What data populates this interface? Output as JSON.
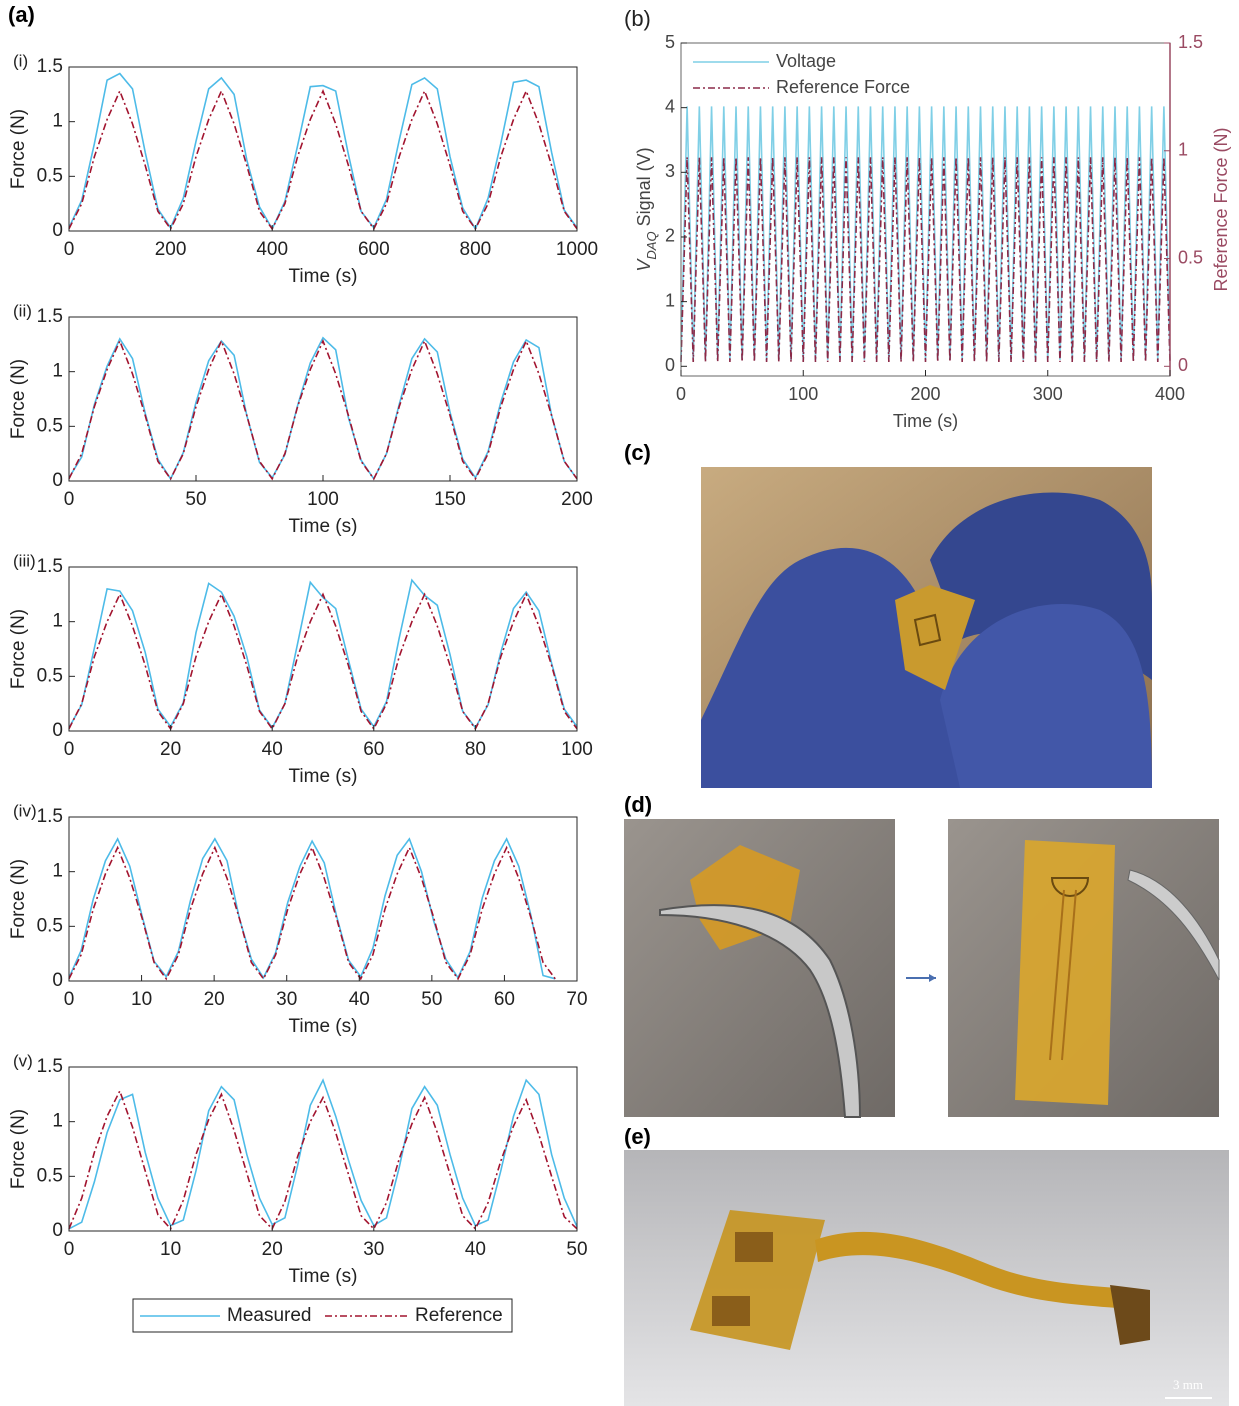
{
  "panels": {
    "a": "(a)",
    "c": "(c)",
    "d": "(d)",
    "e": "(e)",
    "scale_bar": "3 mm"
  },
  "chart_data": [
    {
      "type": "line",
      "panel_label": "(i)",
      "xlabel": "Time (s)",
      "ylabel": "Force (N)",
      "x": [
        0,
        25,
        50,
        75,
        100,
        125,
        150,
        175,
        200,
        225,
        250,
        275,
        300,
        325,
        350,
        375,
        400,
        425,
        450,
        475,
        500,
        525,
        550,
        575,
        600,
        625,
        650,
        675,
        700,
        725,
        750,
        775,
        800,
        825,
        850,
        875,
        900,
        925,
        950,
        975,
        1000
      ],
      "xlim": [
        0,
        1000
      ],
      "xticks": [
        0,
        200,
        400,
        600,
        800,
        1000
      ],
      "ylim": [
        0,
        1.5
      ],
      "yticks": [
        0,
        0.5,
        1,
        1.5
      ],
      "series": [
        {
          "name": "Measured",
          "color": "#4dbbe8",
          "line_style": "solid",
          "values": [
            0.03,
            0.28,
            0.8,
            1.38,
            1.44,
            1.3,
            0.72,
            0.2,
            0.03,
            0.3,
            0.82,
            1.3,
            1.4,
            1.25,
            0.65,
            0.22,
            0.02,
            0.27,
            0.78,
            1.32,
            1.33,
            1.28,
            0.7,
            0.18,
            0.03,
            0.29,
            0.83,
            1.34,
            1.4,
            1.3,
            0.68,
            0.21,
            0.02,
            0.3,
            0.8,
            1.36,
            1.38,
            1.32,
            0.72,
            0.19,
            0.03
          ]
        },
        {
          "name": "Reference",
          "color": "#a2142f",
          "line_style": "dash-dot",
          "values": [
            0.02,
            0.25,
            0.68,
            1.02,
            1.28,
            0.98,
            0.6,
            0.18,
            0.02,
            0.25,
            0.68,
            1.02,
            1.28,
            0.98,
            0.6,
            0.18,
            0.02,
            0.25,
            0.68,
            1.02,
            1.28,
            0.98,
            0.6,
            0.18,
            0.02,
            0.25,
            0.68,
            1.02,
            1.28,
            0.98,
            0.6,
            0.18,
            0.02,
            0.25,
            0.68,
            1.02,
            1.28,
            0.98,
            0.6,
            0.18,
            0.02
          ]
        }
      ]
    },
    {
      "type": "line",
      "panel_label": "(ii)",
      "xlabel": "Time (s)",
      "ylabel": "Force (N)",
      "x": [
        0,
        5,
        10,
        15,
        20,
        25,
        30,
        35,
        40,
        45,
        50,
        55,
        60,
        65,
        70,
        75,
        80,
        85,
        90,
        95,
        100,
        105,
        110,
        115,
        120,
        125,
        130,
        135,
        140,
        145,
        150,
        155,
        160,
        165,
        170,
        175,
        180,
        185,
        190,
        195,
        200
      ],
      "xlim": [
        0,
        200
      ],
      "xticks": [
        0,
        50,
        100,
        150,
        200
      ],
      "ylim": [
        0,
        1.5
      ],
      "yticks": [
        0,
        0.5,
        1,
        1.5
      ],
      "series": [
        {
          "name": "Measured",
          "color": "#4dbbe8",
          "line_style": "solid",
          "values": [
            0.03,
            0.22,
            0.7,
            1.05,
            1.3,
            1.12,
            0.62,
            0.2,
            0.02,
            0.26,
            0.72,
            1.1,
            1.28,
            1.15,
            0.6,
            0.17,
            0.03,
            0.24,
            0.69,
            1.08,
            1.31,
            1.2,
            0.58,
            0.19,
            0.02,
            0.25,
            0.7,
            1.12,
            1.3,
            1.18,
            0.63,
            0.2,
            0.03,
            0.27,
            0.72,
            1.09,
            1.29,
            1.22,
            0.6,
            0.18,
            0.02
          ]
        },
        {
          "name": "Reference",
          "color": "#a2142f",
          "line_style": "dash-dot",
          "values": [
            0.02,
            0.25,
            0.68,
            1.02,
            1.28,
            0.98,
            0.6,
            0.18,
            0.02,
            0.25,
            0.68,
            1.02,
            1.28,
            0.98,
            0.6,
            0.18,
            0.02,
            0.25,
            0.68,
            1.02,
            1.28,
            0.98,
            0.6,
            0.18,
            0.02,
            0.25,
            0.68,
            1.02,
            1.28,
            0.98,
            0.6,
            0.18,
            0.02,
            0.25,
            0.68,
            1.02,
            1.28,
            0.98,
            0.6,
            0.18,
            0.02
          ]
        }
      ]
    },
    {
      "type": "line",
      "panel_label": "(iii)",
      "xlabel": "Time (s)",
      "ylabel": "Force (N)",
      "x": [
        0,
        2.5,
        5,
        7.5,
        10,
        12.5,
        15,
        17.5,
        20,
        22.5,
        25,
        27.5,
        30,
        32.5,
        35,
        37.5,
        40,
        42.5,
        45,
        47.5,
        50,
        52.5,
        55,
        57.5,
        60,
        62.5,
        65,
        67.5,
        70,
        72.5,
        75,
        77.5,
        80,
        82.5,
        85,
        87.5,
        90,
        92.5,
        95,
        97.5,
        100
      ],
      "xlim": [
        0,
        100
      ],
      "xticks": [
        0,
        20,
        40,
        60,
        80,
        100
      ],
      "ylim": [
        0,
        1.5
      ],
      "yticks": [
        0,
        0.5,
        1,
        1.5
      ],
      "series": [
        {
          "name": "Measured",
          "color": "#4dbbe8",
          "line_style": "solid",
          "values": [
            0.03,
            0.24,
            0.76,
            1.3,
            1.28,
            1.1,
            0.72,
            0.2,
            0.04,
            0.26,
            0.9,
            1.35,
            1.27,
            1.05,
            0.68,
            0.19,
            0.03,
            0.25,
            0.8,
            1.36,
            1.22,
            1.12,
            0.65,
            0.2,
            0.04,
            0.27,
            0.85,
            1.38,
            1.24,
            1.15,
            0.7,
            0.18,
            0.03,
            0.24,
            0.72,
            1.12,
            1.27,
            1.1,
            0.62,
            0.2,
            0.04
          ]
        },
        {
          "name": "Reference",
          "color": "#a2142f",
          "line_style": "dash-dot",
          "values": [
            0.02,
            0.25,
            0.68,
            1.0,
            1.25,
            0.96,
            0.6,
            0.18,
            0.02,
            0.25,
            0.68,
            1.0,
            1.25,
            0.96,
            0.6,
            0.18,
            0.02,
            0.25,
            0.68,
            1.0,
            1.25,
            0.96,
            0.6,
            0.18,
            0.02,
            0.25,
            0.68,
            1.0,
            1.25,
            0.96,
            0.6,
            0.18,
            0.02,
            0.25,
            0.68,
            1.0,
            1.25,
            0.96,
            0.6,
            0.18,
            0.02
          ]
        }
      ]
    },
    {
      "type": "line",
      "panel_label": "(iv)",
      "xlabel": "Time (s)",
      "ylabel": "Force (N)",
      "x": [
        0,
        1.675,
        3.35,
        5.025,
        6.7,
        8.375,
        10.05,
        11.725,
        13.4,
        15.075,
        16.75,
        18.425,
        20.1,
        21.775,
        23.45,
        25.125,
        26.8,
        28.475,
        30.15,
        31.825,
        33.5,
        35.175,
        36.85,
        38.525,
        40.2,
        41.875,
        43.55,
        45.225,
        46.9,
        48.575,
        50.25,
        51.925,
        53.6,
        55.275,
        56.95,
        58.625,
        60.3,
        61.975,
        63.65,
        65.325,
        67
      ],
      "xlim": [
        0,
        70
      ],
      "xticks": [
        0,
        10,
        20,
        30,
        40,
        50,
        60,
        70
      ],
      "ylim": [
        0,
        1.5
      ],
      "yticks": [
        0,
        0.5,
        1,
        1.5
      ],
      "series": [
        {
          "name": "Measured",
          "color": "#4dbbe8",
          "line_style": "solid",
          "values": [
            0.03,
            0.28,
            0.75,
            1.1,
            1.3,
            1.05,
            0.6,
            0.18,
            0.04,
            0.27,
            0.74,
            1.12,
            1.3,
            1.1,
            0.58,
            0.2,
            0.03,
            0.26,
            0.72,
            1.05,
            1.28,
            1.08,
            0.6,
            0.19,
            0.04,
            0.3,
            0.78,
            1.15,
            1.3,
            1.0,
            0.55,
            0.2,
            0.03,
            0.27,
            0.76,
            1.1,
            1.3,
            1.05,
            0.6,
            0.05,
            0.02
          ]
        },
        {
          "name": "Reference",
          "color": "#a2142f",
          "line_style": "dash-dot",
          "values": [
            0.02,
            0.24,
            0.66,
            0.98,
            1.22,
            0.94,
            0.58,
            0.17,
            0.02,
            0.24,
            0.66,
            0.98,
            1.22,
            0.94,
            0.58,
            0.17,
            0.02,
            0.24,
            0.66,
            0.98,
            1.22,
            0.94,
            0.58,
            0.17,
            0.02,
            0.24,
            0.66,
            0.98,
            1.22,
            0.94,
            0.58,
            0.17,
            0.02,
            0.24,
            0.66,
            0.98,
            1.22,
            0.94,
            0.58,
            0.17,
            0.02
          ]
        }
      ]
    },
    {
      "type": "line",
      "panel_label": "(v)",
      "xlabel": "Time (s)",
      "ylabel": "Force (N)",
      "legend": "below",
      "x": [
        0,
        1.25,
        2.5,
        3.75,
        5,
        6.25,
        7.5,
        8.75,
        10,
        11.25,
        12.5,
        13.75,
        15,
        16.25,
        17.5,
        18.75,
        20,
        21.25,
        22.5,
        23.75,
        25,
        26.25,
        27.5,
        28.75,
        30,
        31.25,
        32.5,
        33.75,
        35,
        36.25,
        37.5,
        38.75,
        40,
        41.25,
        42.5,
        43.75,
        45,
        46.25,
        47.5,
        48.75,
        50
      ],
      "xlim": [
        0,
        50
      ],
      "xticks": [
        0,
        10,
        20,
        30,
        40,
        50
      ],
      "ylim": [
        0,
        1.5
      ],
      "yticks": [
        0,
        0.5,
        1,
        1.5
      ],
      "series": [
        {
          "name": "Measured",
          "color": "#4dbbe8",
          "line_style": "solid",
          "values": [
            0.02,
            0.08,
            0.45,
            0.9,
            1.2,
            1.25,
            0.72,
            0.3,
            0.05,
            0.1,
            0.55,
            1.1,
            1.32,
            1.2,
            0.7,
            0.3,
            0.06,
            0.12,
            0.6,
            1.15,
            1.38,
            1.05,
            0.65,
            0.28,
            0.05,
            0.12,
            0.58,
            1.12,
            1.32,
            1.15,
            0.7,
            0.3,
            0.05,
            0.1,
            0.55,
            1.05,
            1.38,
            1.25,
            0.7,
            0.3,
            0.04
          ]
        },
        {
          "name": "Reference",
          "color": "#a2142f",
          "line_style": "dash-dot",
          "values": [
            0.02,
            0.3,
            0.72,
            1.05,
            1.28,
            0.95,
            0.55,
            0.15,
            0.02,
            0.28,
            0.7,
            1.02,
            1.25,
            0.92,
            0.53,
            0.14,
            0.02,
            0.27,
            0.68,
            1.0,
            1.22,
            0.9,
            0.52,
            0.14,
            0.02,
            0.26,
            0.66,
            0.98,
            1.22,
            0.9,
            0.52,
            0.14,
            0.02,
            0.26,
            0.64,
            0.96,
            1.2,
            0.88,
            0.5,
            0.13,
            0.02
          ]
        }
      ]
    },
    {
      "type": "line",
      "panel_label": "(b)",
      "xlabel": "Time (s)",
      "ylabel": {
        "main": "V",
        "sub": "DAQ",
        "rest": " Signal (V)"
      },
      "y2label": "Reference Force (N)",
      "y2_color": "#9a4a62",
      "legend": "upper-left",
      "x": [
        0,
        5,
        10,
        15,
        20,
        25,
        30,
        35,
        40,
        45,
        50,
        55,
        60,
        65,
        70,
        75,
        80,
        85,
        90,
        95,
        100,
        105,
        110,
        115,
        120,
        125,
        130,
        135,
        140,
        145,
        150,
        155,
        160,
        165,
        170,
        175,
        180,
        185,
        190,
        195,
        200,
        205,
        210,
        215,
        220,
        225,
        230,
        235,
        240,
        245,
        250,
        255,
        260,
        265,
        270,
        275,
        280,
        285,
        290,
        295,
        300,
        305,
        310,
        315,
        320,
        325,
        330,
        335,
        340,
        345,
        350,
        355,
        360,
        365,
        370,
        375,
        380,
        385,
        390,
        395,
        400
      ],
      "xlim": [
        0,
        400
      ],
      "xticks": [
        0,
        100,
        200,
        300,
        400
      ],
      "ylim": [
        -0.15,
        5
      ],
      "yticks": [
        0,
        1,
        2,
        3,
        4,
        5
      ],
      "y2lim": [
        -0.045,
        1.5
      ],
      "y2ticks": [
        0,
        0.5,
        1,
        1.5
      ],
      "series": [
        {
          "name": "Voltage",
          "color": "#7fcfe6",
          "line_style": "solid",
          "values": [
            0.1,
            4.02,
            0.1,
            4.02,
            0.1,
            4.02,
            0.1,
            4.02,
            0.1,
            4.02,
            0.1,
            4.02,
            0.1,
            4.02,
            0.1,
            4.02,
            0.1,
            4.02,
            0.1,
            4.02,
            0.1,
            4.02,
            0.1,
            4.02,
            0.1,
            4.02,
            0.1,
            4.02,
            0.1,
            4.02,
            0.1,
            4.02,
            0.1,
            4.02,
            0.1,
            4.02,
            0.1,
            4.02,
            0.1,
            4.02,
            0.1,
            4.02,
            0.1,
            4.02,
            0.1,
            4.02,
            0.1,
            4.02,
            0.1,
            4.02,
            0.1,
            4.02,
            0.1,
            4.02,
            0.1,
            4.02,
            0.1,
            4.02,
            0.1,
            4.02,
            0.1,
            4.02,
            0.1,
            4.02,
            0.1,
            4.02,
            0.1,
            4.02,
            0.1,
            4.02,
            0.1,
            4.02,
            0.1,
            4.02,
            0.1,
            4.02,
            0.1,
            4.02,
            0.1,
            4.02,
            0.1
          ]
        },
        {
          "name": "Reference Force",
          "color": "#8b2a48",
          "line_style": "dash-dot",
          "axis": "y2",
          "values": [
            0.02,
            0.97,
            0.02,
            0.97,
            0.02,
            0.97,
            0.02,
            0.97,
            0.02,
            0.97,
            0.02,
            0.97,
            0.02,
            0.97,
            0.02,
            0.97,
            0.02,
            0.97,
            0.02,
            0.97,
            0.02,
            0.97,
            0.02,
            0.97,
            0.02,
            0.97,
            0.02,
            0.97,
            0.02,
            0.97,
            0.02,
            0.97,
            0.02,
            0.97,
            0.02,
            0.97,
            0.02,
            0.97,
            0.02,
            0.97,
            0.02,
            0.97,
            0.02,
            0.97,
            0.02,
            0.97,
            0.02,
            0.97,
            0.02,
            0.97,
            0.02,
            0.97,
            0.02,
            0.97,
            0.02,
            0.97,
            0.02,
            0.97,
            0.02,
            0.97,
            0.02,
            0.97,
            0.02,
            0.97,
            0.02,
            0.97,
            0.02,
            0.97,
            0.02,
            0.97,
            0.02,
            0.97,
            0.02,
            0.97,
            0.02,
            0.97,
            0.02,
            0.97,
            0.02,
            0.97,
            0.02
          ]
        }
      ]
    }
  ]
}
